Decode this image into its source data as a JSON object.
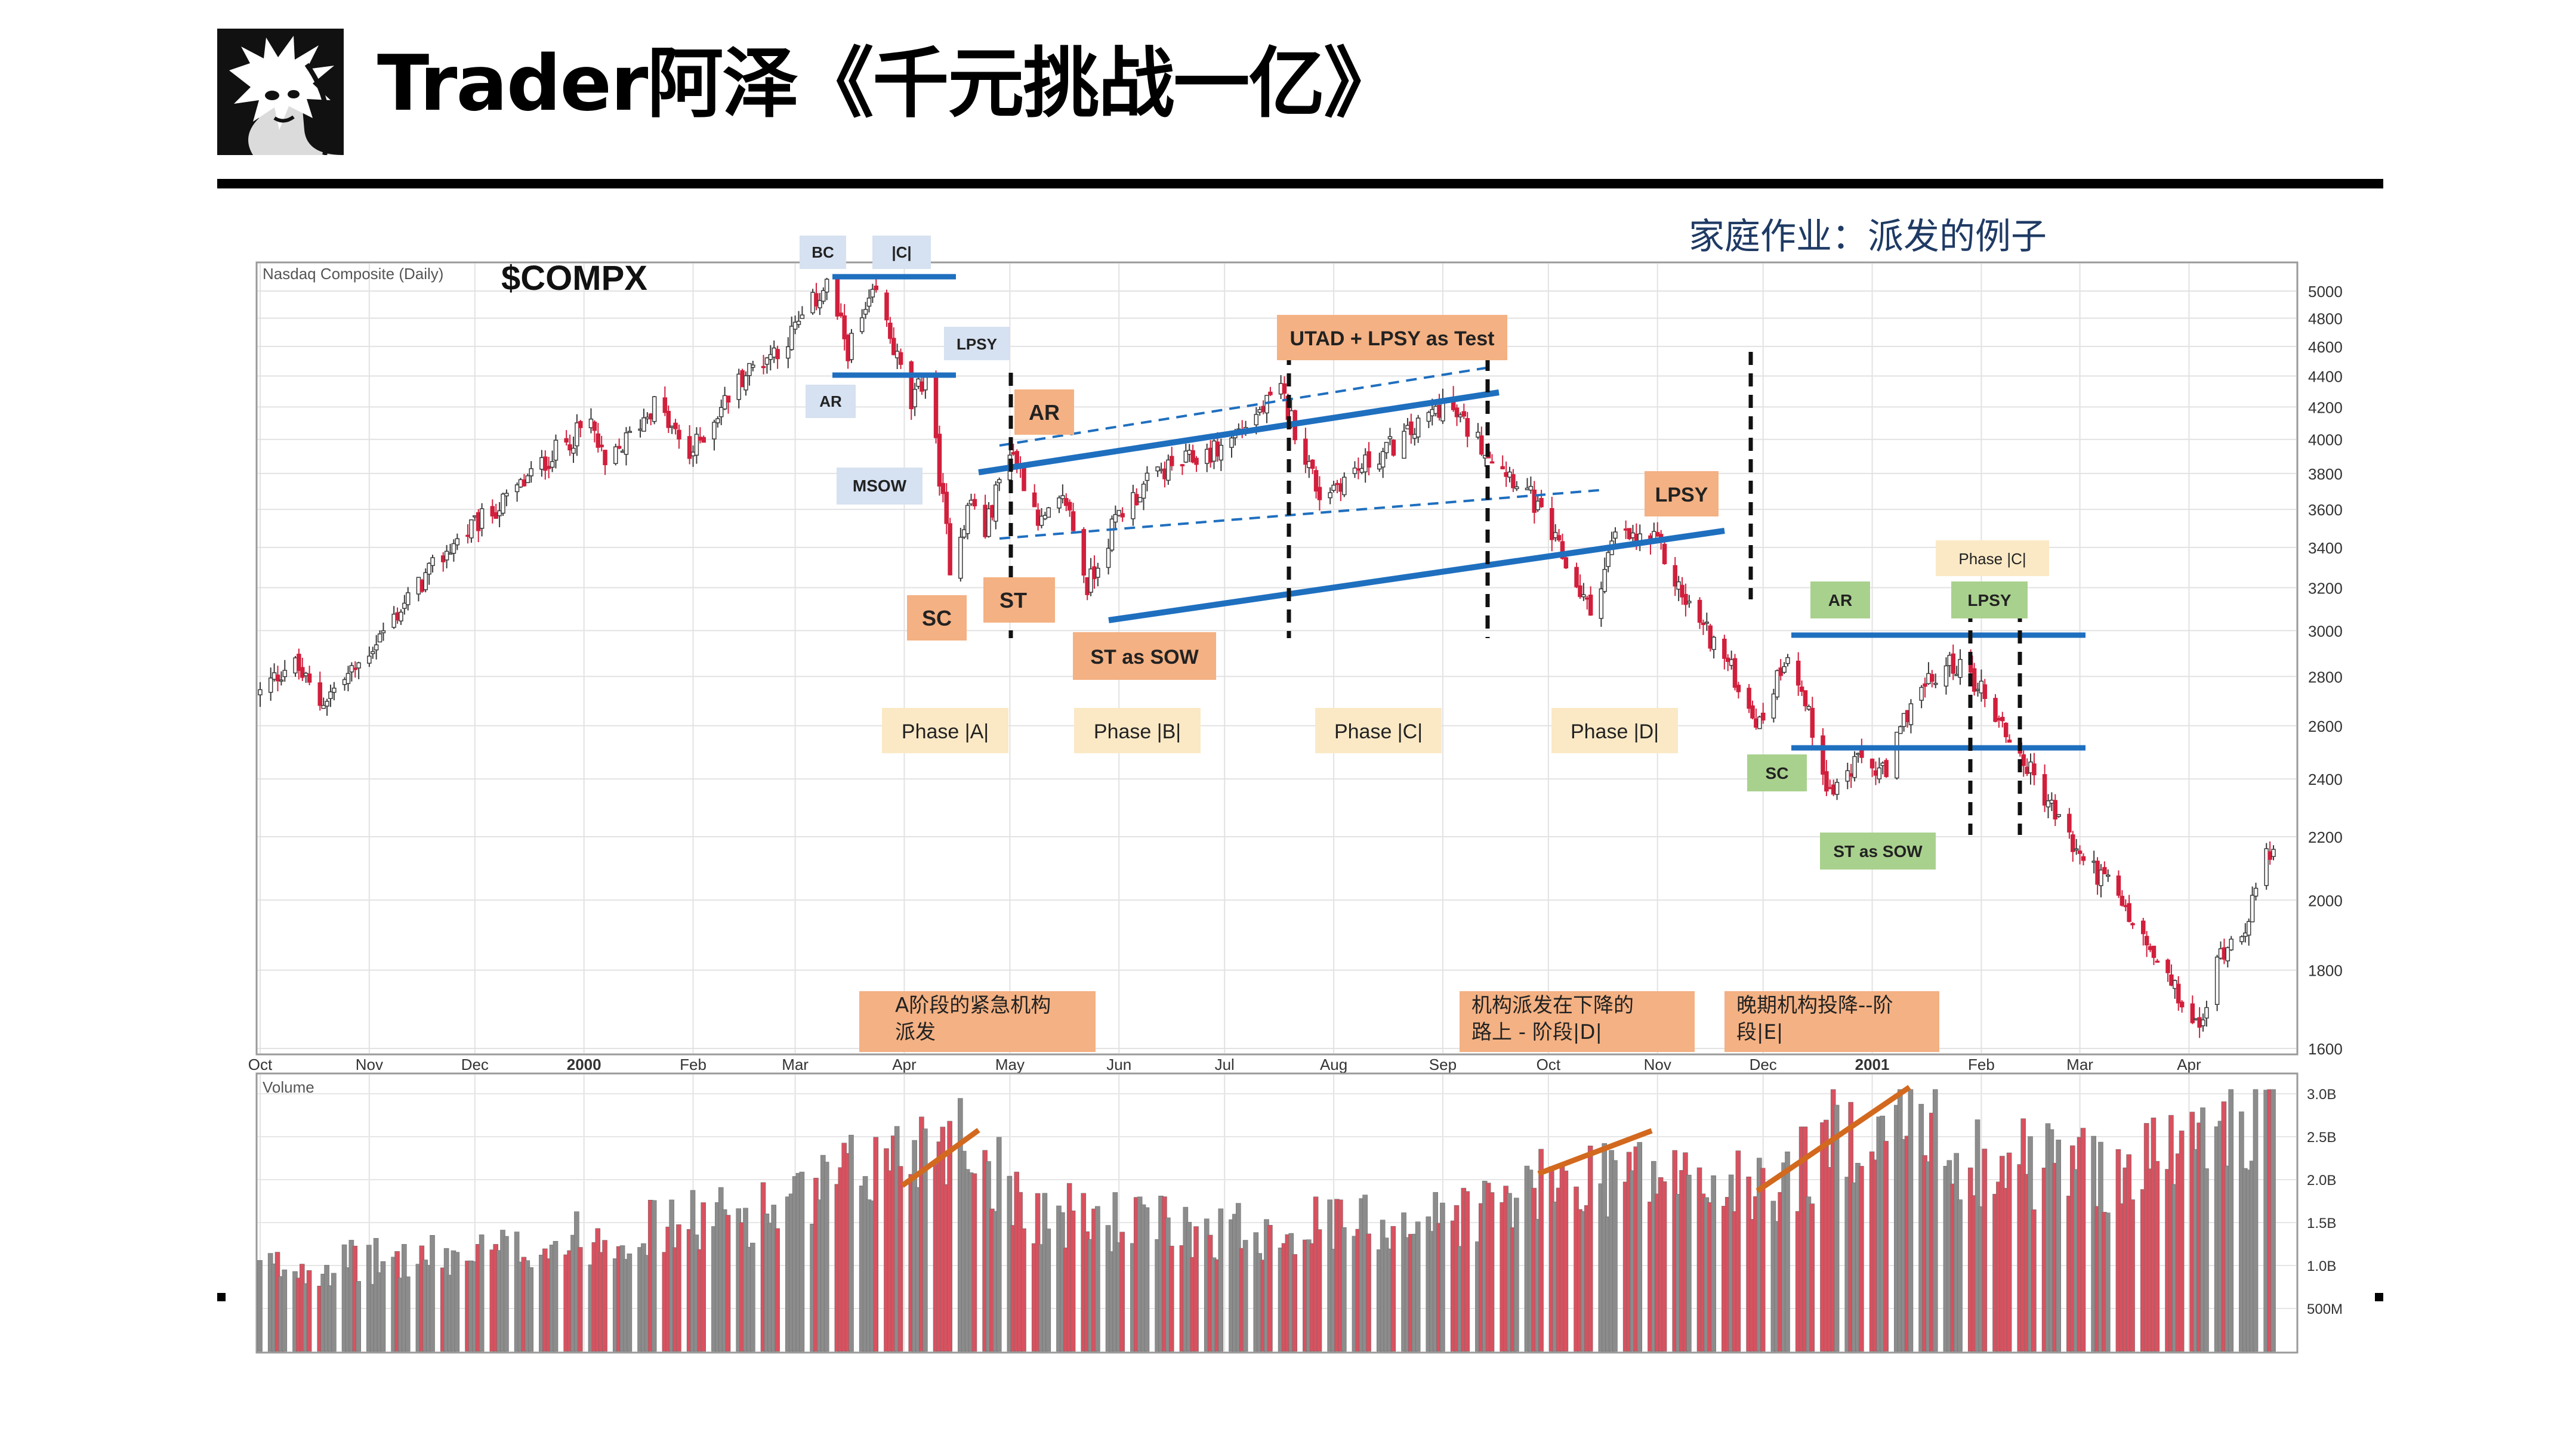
{
  "header": {
    "title": "Trader阿泽《千元挑战一亿》",
    "subtitle": "家庭作业：派发的例子"
  },
  "chart_data": {
    "type": "candlestick",
    "symbol": "$COMPX",
    "source_label": "Nasdaq Composite (Daily)",
    "volume_label": "Volume",
    "price_axis": {
      "scale": "log",
      "ticks": [
        1600,
        1800,
        2000,
        2200,
        2400,
        2600,
        2800,
        3000,
        3200,
        3400,
        3600,
        3800,
        4000,
        4200,
        4400,
        4600,
        4800,
        5000
      ]
    },
    "volume_axis": {
      "ticks": [
        "500M",
        "1.0B",
        "1.5B",
        "2.0B",
        "2.5B",
        "3.0B"
      ],
      "values": [
        0.5,
        1.0,
        1.5,
        2.0,
        2.5,
        3.0
      ]
    },
    "x_axis": {
      "labels": [
        "Oct",
        "Nov",
        "Dec",
        "2000",
        "Feb",
        "Mar",
        "Apr",
        "May",
        "Jun",
        "Jul",
        "Aug",
        "Sep",
        "Oct",
        "Nov",
        "Dec",
        "2001",
        "Feb",
        "Mar",
        "Apr"
      ],
      "bold": [
        "2000",
        "2001"
      ],
      "x_start": "1999-10-01",
      "x_end": "2001-04-25"
    },
    "grid": true,
    "price_path": [
      [
        "1999-10-01",
        2730
      ],
      [
        "1999-10-10",
        2870
      ],
      [
        "1999-10-18",
        2690
      ],
      [
        "1999-10-28",
        2830
      ],
      [
        "1999-11-10",
        3100
      ],
      [
        "1999-11-25",
        3420
      ],
      [
        "1999-12-10",
        3650
      ],
      [
        "1999-12-25",
        3950
      ],
      [
        "2000-01-03",
        4100
      ],
      [
        "2000-01-07",
        3820
      ],
      [
        "2000-01-21",
        4220
      ],
      [
        "2000-01-31",
        3900
      ],
      [
        "2000-02-15",
        4400
      ],
      [
        "2000-02-28",
        4650
      ],
      [
        "2000-03-10",
        5050
      ],
      [
        "2000-03-16",
        4580
      ],
      [
        "2000-03-24",
        4980
      ],
      [
        "2000-04-03",
        4200
      ],
      [
        "2000-04-07",
        4420
      ],
      [
        "2000-04-14",
        3320
      ],
      [
        "2000-04-20",
        3650
      ],
      [
        "2000-04-24",
        3480
      ],
      [
        "2000-05-01",
        3960
      ],
      [
        "2000-05-10",
        3520
      ],
      [
        "2000-05-17",
        3650
      ],
      [
        "2000-05-23",
        3200
      ],
      [
        "2000-06-01",
        3580
      ],
      [
        "2000-06-12",
        3800
      ],
      [
        "2000-06-30",
        3950
      ],
      [
        "2000-07-17",
        4290
      ],
      [
        "2000-07-28",
        3680
      ],
      [
        "2000-08-10",
        3850
      ],
      [
        "2000-08-25",
        4070
      ],
      [
        "2000-09-01",
        4230
      ],
      [
        "2000-09-13",
        3950
      ],
      [
        "2000-09-25",
        3700
      ],
      [
        "2000-10-05",
        3350
      ],
      [
        "2000-10-13",
        3080
      ],
      [
        "2000-10-20",
        3460
      ],
      [
        "2000-11-01",
        3420
      ],
      [
        "2000-11-08",
        3160
      ],
      [
        "2000-11-20",
        2880
      ],
      [
        "2000-11-30",
        2600
      ],
      [
        "2000-12-08",
        2920
      ],
      [
        "2000-12-20",
        2350
      ],
      [
        "2000-12-29",
        2470
      ],
      [
        "2001-01-05",
        2410
      ],
      [
        "2001-01-12",
        2700
      ],
      [
        "2001-01-24",
        2860
      ],
      [
        "2001-01-31",
        2770
      ],
      [
        "2001-02-09",
        2550
      ],
      [
        "2001-02-20",
        2320
      ],
      [
        "2001-02-28",
        2150
      ],
      [
        "2001-03-09",
        2050
      ],
      [
        "2001-03-22",
        1830
      ],
      [
        "2001-04-04",
        1640
      ],
      [
        "2001-04-10",
        1850
      ],
      [
        "2001-04-17",
        1930
      ],
      [
        "2001-04-25",
        2190
      ]
    ],
    "volume_path": [
      [
        "1999-10-01",
        1.0
      ],
      [
        "1999-12-01",
        1.15
      ],
      [
        "2000-01-15",
        1.45
      ],
      [
        "2000-03-01",
        1.75
      ],
      [
        "2000-04-14",
        2.7
      ],
      [
        "2000-05-10",
        1.65
      ],
      [
        "2000-07-01",
        1.45
      ],
      [
        "2000-09-01",
        1.6
      ],
      [
        "2000-10-20",
        2.2
      ],
      [
        "2000-12-01",
        1.9
      ],
      [
        "2001-01-03",
        2.9
      ],
      [
        "2001-02-01",
        2.3
      ],
      [
        "2001-03-15",
        2.2
      ],
      [
        "2001-04-20",
        2.8
      ]
    ],
    "annotations": {
      "box_labels": [
        {
          "key": "bc",
          "text": "BC"
        },
        {
          "key": "c1",
          "text": "|C|"
        },
        {
          "key": "ar1",
          "text": "AR"
        },
        {
          "key": "lpsy1",
          "text": "LPSY"
        },
        {
          "key": "msow",
          "text": "MSOW"
        },
        {
          "key": "ar2",
          "text": "AR"
        },
        {
          "key": "utad",
          "text": "UTAD + LPSY as Test"
        },
        {
          "key": "lpsy2",
          "text": "LPSY"
        },
        {
          "key": "sc1",
          "text": "SC"
        },
        {
          "key": "st",
          "text": "ST"
        },
        {
          "key": "stsow1",
          "text": "ST as SOW"
        },
        {
          "key": "phaseA",
          "text": "Phase |A|"
        },
        {
          "key": "phaseB",
          "text": "Phase |B|"
        },
        {
          "key": "phaseC",
          "text": "Phase |C|"
        },
        {
          "key": "phaseD",
          "text": "Phase |D|"
        },
        {
          "key": "ar3",
          "text": "AR"
        },
        {
          "key": "phaseC2",
          "text": "Phase |C|"
        },
        {
          "key": "lpsy3",
          "text": "LPSY"
        },
        {
          "key": "sc2",
          "text": "SC"
        },
        {
          "key": "stsow2",
          "text": "ST as SOW"
        }
      ],
      "notes": [
        {
          "key": "noteA",
          "lines": [
            "A阶段的紧急机构",
            "派发"
          ]
        },
        {
          "key": "noteD",
          "lines": [
            "机构派发在下降的",
            "路上 - 阶段|D|"
          ]
        },
        {
          "key": "noteE",
          "lines": [
            "晚期机构投降--阶",
            "段|E|"
          ]
        }
      ]
    },
    "colors": {
      "up_candle": "#3a3a3a",
      "down_candle": "#d11f3c",
      "volume_up": "#8c8c8c",
      "volume_down": "#d9515f",
      "trendline": "#1f6fbf",
      "volume_trend": "#d2691e",
      "box_blue": "#d6e1f1",
      "box_orange": "#f4b183",
      "box_yellow": "#fbe9c6",
      "box_green": "#a9d18e"
    }
  }
}
